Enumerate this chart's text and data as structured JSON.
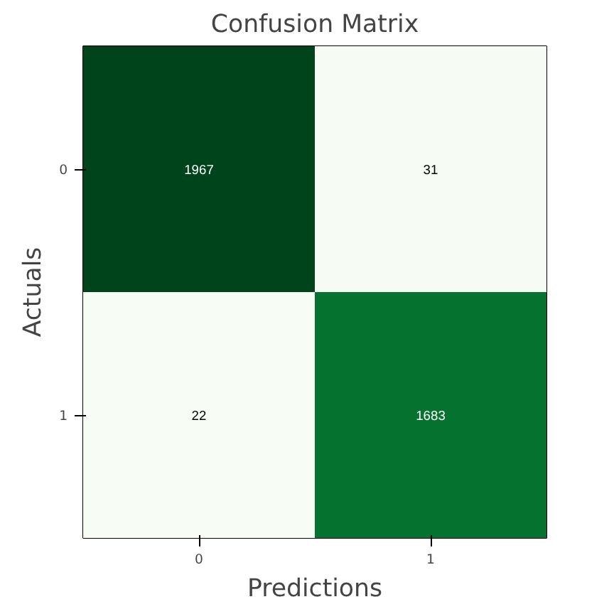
{
  "chart_data": {
    "type": "heatmap",
    "title": "Confusion Matrix",
    "xlabel": "Predictions",
    "ylabel": "Actuals",
    "categories": [
      "0",
      "1"
    ],
    "y_categories": [
      "0",
      "1"
    ],
    "cells": [
      [
        1967,
        31
      ],
      [
        22,
        1683
      ]
    ],
    "data_labels": true
  }
}
